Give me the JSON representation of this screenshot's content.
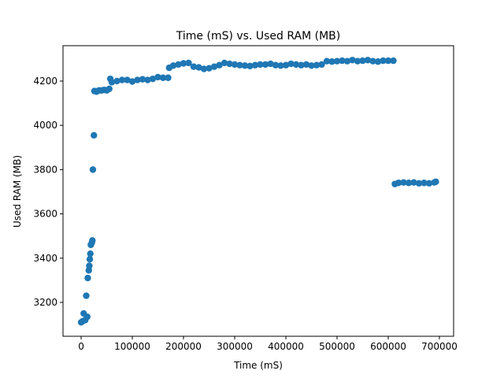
{
  "chart_data": {
    "type": "scatter",
    "title": "Time (mS) vs. Used RAM (MB)",
    "x_label": "Time (mS)",
    "y_label": "Used RAM (MB)",
    "color": "#1f77b4",
    "x": [
      0,
      3000,
      5000,
      8000,
      10000,
      12000,
      13000,
      15000,
      16000,
      17000,
      18000,
      19000,
      21000,
      22000,
      23000,
      25000,
      26000,
      30000,
      35000,
      40000,
      45000,
      50000,
      55000,
      57000,
      60000,
      70000,
      80000,
      90000,
      100000,
      110000,
      120000,
      130000,
      140000,
      150000,
      160000,
      170000,
      172000,
      180000,
      190000,
      200000,
      210000,
      220000,
      230000,
      240000,
      250000,
      260000,
      270000,
      280000,
      290000,
      300000,
      310000,
      320000,
      330000,
      340000,
      350000,
      360000,
      370000,
      380000,
      390000,
      400000,
      410000,
      420000,
      430000,
      440000,
      450000,
      460000,
      470000,
      480000,
      490000,
      500000,
      510000,
      520000,
      530000,
      540000,
      550000,
      560000,
      570000,
      580000,
      590000,
      600000,
      610000,
      613000,
      620000,
      630000,
      640000,
      650000,
      660000,
      670000,
      680000,
      690000,
      693000
    ],
    "values": [
      3110,
      3115,
      3150,
      3120,
      3230,
      3135,
      3310,
      3345,
      3365,
      3395,
      3420,
      3460,
      3470,
      3480,
      3800,
      3955,
      4155,
      4152,
      4158,
      4158,
      4160,
      4158,
      4165,
      4210,
      4195,
      4200,
      4205,
      4205,
      4198,
      4205,
      4208,
      4205,
      4210,
      4218,
      4215,
      4215,
      4260,
      4270,
      4275,
      4280,
      4282,
      4265,
      4262,
      4255,
      4258,
      4265,
      4272,
      4282,
      4278,
      4275,
      4272,
      4270,
      4268,
      4272,
      4275,
      4275,
      4278,
      4272,
      4270,
      4272,
      4278,
      4275,
      4272,
      4275,
      4270,
      4272,
      4275,
      4290,
      4288,
      4290,
      4292,
      4290,
      4295,
      4290,
      4292,
      4295,
      4290,
      4288,
      4292,
      4292,
      4292,
      3735,
      3740,
      3742,
      3740,
      3742,
      3738,
      3740,
      3738,
      3742,
      3745
    ],
    "xlim": [
      -35400,
      727700
    ],
    "ylim": [
      3047,
      4360
    ],
    "xticks": [
      0,
      100000,
      200000,
      300000,
      400000,
      500000,
      600000,
      700000
    ],
    "yticks": [
      3200,
      3400,
      3600,
      3800,
      4000,
      4200
    ]
  }
}
